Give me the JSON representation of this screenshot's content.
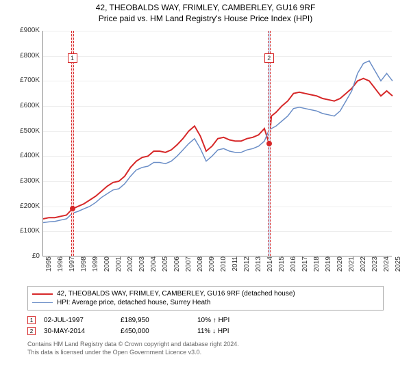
{
  "title_line1": "42, THEOBALDS WAY, FRIMLEY, CAMBERLEY, GU16 9RF",
  "title_line2": "Price paid vs. HM Land Registry's House Price Index (HPI)",
  "chart": {
    "type": "line",
    "background_color": "#ffffff",
    "grid_color": "#cccccc",
    "axis_color": "#888888",
    "ylim": [
      0,
      900000
    ],
    "ytick_step": 100000,
    "yticks": [
      "£0",
      "£100K",
      "£200K",
      "£300K",
      "£400K",
      "£500K",
      "£600K",
      "£700K",
      "£800K",
      "£900K"
    ],
    "xlim": [
      1995,
      2025
    ],
    "xticks": [
      "1995",
      "1996",
      "1997",
      "1998",
      "1999",
      "2000",
      "2001",
      "2002",
      "2003",
      "2004",
      "2005",
      "2006",
      "2007",
      "2008",
      "2009",
      "2010",
      "2011",
      "2012",
      "2013",
      "2014",
      "2015",
      "2016",
      "2017",
      "2018",
      "2019",
      "2020",
      "2021",
      "2022",
      "2023",
      "2024",
      "2025"
    ],
    "xtick_fontsize": 10,
    "ytick_fontsize": 10,
    "series": [
      {
        "name": "price_paid",
        "label": "42, THEOBALDS WAY, FRIMLEY, CAMBERLEY, GU16 9RF (detached house)",
        "color": "#d62728",
        "line_width": 2,
        "data": [
          [
            1995,
            150000
          ],
          [
            1995.5,
            155000
          ],
          [
            1996,
            155000
          ],
          [
            1996.5,
            160000
          ],
          [
            1997,
            165000
          ],
          [
            1997.5,
            189950
          ],
          [
            1998,
            200000
          ],
          [
            1998.5,
            210000
          ],
          [
            1999,
            225000
          ],
          [
            1999.5,
            240000
          ],
          [
            2000,
            260000
          ],
          [
            2000.5,
            280000
          ],
          [
            2001,
            295000
          ],
          [
            2001.5,
            300000
          ],
          [
            2002,
            320000
          ],
          [
            2002.5,
            355000
          ],
          [
            2003,
            380000
          ],
          [
            2003.5,
            395000
          ],
          [
            2004,
            400000
          ],
          [
            2004.5,
            420000
          ],
          [
            2005,
            420000
          ],
          [
            2005.5,
            415000
          ],
          [
            2006,
            425000
          ],
          [
            2006.5,
            445000
          ],
          [
            2007,
            470000
          ],
          [
            2007.5,
            500000
          ],
          [
            2008,
            520000
          ],
          [
            2008.5,
            480000
          ],
          [
            2009,
            420000
          ],
          [
            2009.5,
            440000
          ],
          [
            2010,
            470000
          ],
          [
            2010.5,
            475000
          ],
          [
            2011,
            465000
          ],
          [
            2011.5,
            460000
          ],
          [
            2012,
            460000
          ],
          [
            2012.5,
            470000
          ],
          [
            2013,
            475000
          ],
          [
            2013.5,
            485000
          ],
          [
            2014,
            510000
          ],
          [
            2014.4,
            450000
          ],
          [
            2014.6,
            560000
          ],
          [
            2015,
            575000
          ],
          [
            2015.5,
            600000
          ],
          [
            2016,
            620000
          ],
          [
            2016.5,
            650000
          ],
          [
            2017,
            655000
          ],
          [
            2017.5,
            650000
          ],
          [
            2018,
            645000
          ],
          [
            2018.5,
            640000
          ],
          [
            2019,
            630000
          ],
          [
            2019.5,
            625000
          ],
          [
            2020,
            620000
          ],
          [
            2020.5,
            630000
          ],
          [
            2021,
            650000
          ],
          [
            2021.5,
            670000
          ],
          [
            2022,
            700000
          ],
          [
            2022.5,
            710000
          ],
          [
            2023,
            700000
          ],
          [
            2023.5,
            670000
          ],
          [
            2024,
            640000
          ],
          [
            2024.5,
            660000
          ],
          [
            2025,
            640000
          ]
        ]
      },
      {
        "name": "hpi",
        "label": "HPI: Average price, detached house, Surrey Heath",
        "color": "#6b8ec7",
        "line_width": 1.5,
        "data": [
          [
            1995,
            135000
          ],
          [
            1995.5,
            138000
          ],
          [
            1996,
            140000
          ],
          [
            1996.5,
            145000
          ],
          [
            1997,
            150000
          ],
          [
            1997.5,
            172000
          ],
          [
            1998,
            180000
          ],
          [
            1998.5,
            190000
          ],
          [
            1999,
            200000
          ],
          [
            1999.5,
            215000
          ],
          [
            2000,
            235000
          ],
          [
            2000.5,
            250000
          ],
          [
            2001,
            265000
          ],
          [
            2001.5,
            270000
          ],
          [
            2002,
            290000
          ],
          [
            2002.5,
            320000
          ],
          [
            2003,
            345000
          ],
          [
            2003.5,
            355000
          ],
          [
            2004,
            360000
          ],
          [
            2004.5,
            375000
          ],
          [
            2005,
            375000
          ],
          [
            2005.5,
            370000
          ],
          [
            2006,
            380000
          ],
          [
            2006.5,
            400000
          ],
          [
            2007,
            425000
          ],
          [
            2007.5,
            450000
          ],
          [
            2008,
            470000
          ],
          [
            2008.5,
            430000
          ],
          [
            2009,
            380000
          ],
          [
            2009.5,
            400000
          ],
          [
            2010,
            425000
          ],
          [
            2010.5,
            430000
          ],
          [
            2011,
            420000
          ],
          [
            2011.5,
            415000
          ],
          [
            2012,
            415000
          ],
          [
            2012.5,
            425000
          ],
          [
            2013,
            430000
          ],
          [
            2013.5,
            440000
          ],
          [
            2014,
            460000
          ],
          [
            2014.4,
            505000
          ],
          [
            2014.6,
            510000
          ],
          [
            2015,
            520000
          ],
          [
            2015.5,
            540000
          ],
          [
            2016,
            560000
          ],
          [
            2016.5,
            590000
          ],
          [
            2017,
            595000
          ],
          [
            2017.5,
            590000
          ],
          [
            2018,
            585000
          ],
          [
            2018.5,
            580000
          ],
          [
            2019,
            570000
          ],
          [
            2019.5,
            565000
          ],
          [
            2020,
            560000
          ],
          [
            2020.5,
            580000
          ],
          [
            2021,
            620000
          ],
          [
            2021.5,
            660000
          ],
          [
            2022,
            730000
          ],
          [
            2022.5,
            770000
          ],
          [
            2023,
            780000
          ],
          [
            2023.5,
            740000
          ],
          [
            2024,
            700000
          ],
          [
            2024.5,
            730000
          ],
          [
            2025,
            700000
          ]
        ]
      }
    ],
    "markers": [
      {
        "id": "1",
        "x": 1997.5,
        "y": 189950,
        "box_y": 810000,
        "color": "#d62728",
        "band_color": "#fde0e0"
      },
      {
        "id": "2",
        "x": 2014.4,
        "y": 450000,
        "box_y": 810000,
        "color": "#d62728",
        "band_color": "#d6e4f5"
      }
    ]
  },
  "legend": {
    "border_color": "#aaaaaa",
    "items": [
      {
        "color": "#d62728",
        "thickness": 2,
        "label": "42, THEOBALDS WAY, FRIMLEY, CAMBERLEY, GU16 9RF (detached house)"
      },
      {
        "color": "#6b8ec7",
        "thickness": 1.5,
        "label": "HPI: Average price, detached house, Surrey Heath"
      }
    ]
  },
  "table": {
    "rows": [
      {
        "marker": "1",
        "marker_color": "#d62728",
        "date": "02-JUL-1997",
        "price": "£189,950",
        "delta": "10% ↑ HPI"
      },
      {
        "marker": "2",
        "marker_color": "#d62728",
        "date": "30-MAY-2014",
        "price": "£450,000",
        "delta": "11% ↓ HPI"
      }
    ]
  },
  "footer": {
    "line1": "Contains HM Land Registry data © Crown copyright and database right 2024.",
    "line2": "This data is licensed under the Open Government Licence v3.0."
  }
}
